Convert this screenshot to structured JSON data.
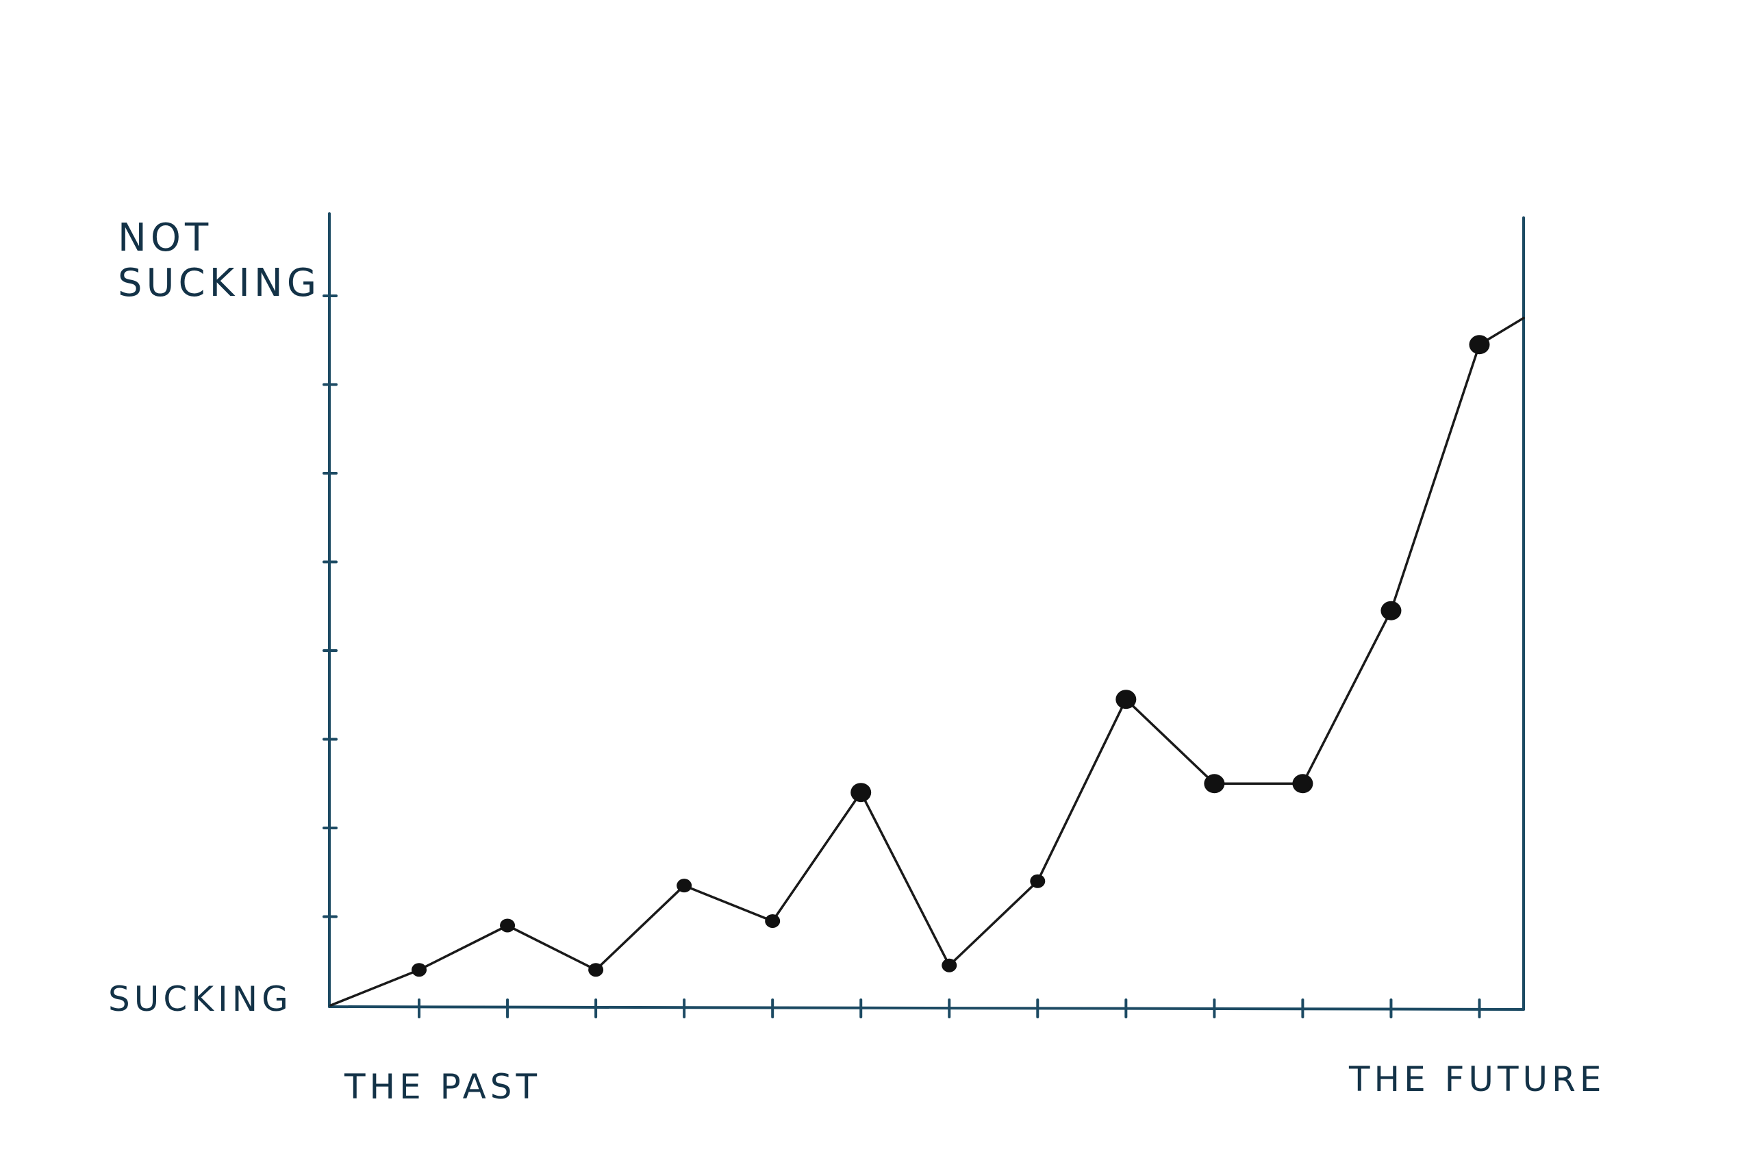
{
  "chart_data": {
    "type": "line",
    "title": "",
    "y_axis": {
      "top_label_line1": "NOT",
      "top_label_line2": "SUCKING",
      "bottom_label": "SUCKING",
      "ylim": [
        0,
        8
      ],
      "tick_values": [
        1,
        2,
        3,
        4,
        5,
        6,
        7,
        8
      ]
    },
    "x_axis": {
      "start_label": "THE PAST",
      "end_label": "THE FUTURE",
      "xlim": [
        0,
        13.5
      ],
      "tick_values": [
        1,
        2,
        3,
        4,
        5,
        6,
        7,
        8,
        9,
        10,
        11,
        12,
        13
      ]
    },
    "grid": false,
    "legend": "none",
    "series": [
      {
        "line_start": [
          0,
          0
        ],
        "points": [
          [
            1,
            0.4
          ],
          [
            2,
            0.9
          ],
          [
            3,
            0.4
          ],
          [
            4,
            1.35
          ],
          [
            5,
            0.95
          ],
          [
            6,
            2.4
          ],
          [
            7,
            0.45
          ],
          [
            8,
            1.4
          ],
          [
            9,
            3.45
          ],
          [
            10,
            2.5
          ],
          [
            11,
            2.5
          ],
          [
            12,
            4.45
          ],
          [
            13,
            7.45
          ]
        ],
        "line_end": [
          13.5,
          7.75
        ]
      }
    ],
    "colors": {
      "axis": "#1c4a63",
      "text": "#133247",
      "line": "#1a1a1a",
      "marker": "#111111"
    }
  }
}
